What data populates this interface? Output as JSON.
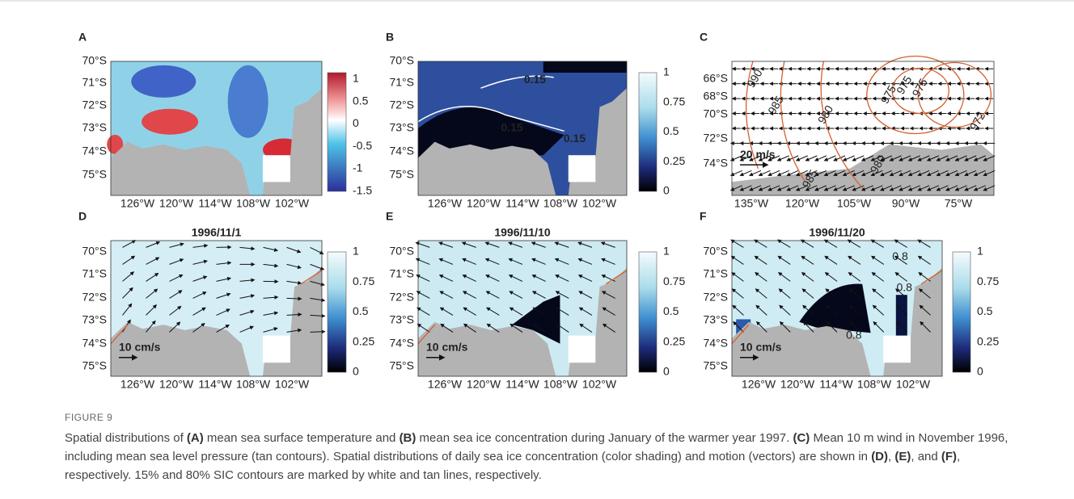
{
  "figure": {
    "label": "FIGURE 9",
    "caption": [
      {
        "text": "Spatial distributions of "
      },
      {
        "text": "(A)",
        "bold": true
      },
      {
        "text": " mean sea surface temperature and "
      },
      {
        "text": "(B)",
        "bold": true
      },
      {
        "text": " mean sea ice concentration during January of the warmer year 1997. "
      },
      {
        "text": "(C)",
        "bold": true
      },
      {
        "text": " Mean 10 m wind in November 1996, including mean sea level pressure (tan contours). Spatial distributions of daily sea ice concentration (color shading) and motion (vectors) are shown in "
      },
      {
        "text": "(D)",
        "bold": true
      },
      {
        "text": ", "
      },
      {
        "text": "(E)",
        "bold": true
      },
      {
        "text": ", and "
      },
      {
        "text": "(F)",
        "bold": true
      },
      {
        "text": ", respectively. 15% and 80% SIC contours are marked by white and tan lines, respectively."
      }
    ]
  },
  "panels": [
    {
      "letter": "A",
      "yticks": [
        "70°S",
        "71°S",
        "72°S",
        "73°S",
        "74°S",
        "75°S"
      ],
      "xticks": [
        "126°W",
        "120°W",
        "114°W",
        "108°W",
        "102°W"
      ],
      "colorbar": [
        "1",
        "0.5",
        "0",
        "-0.5",
        "-1",
        "-1.5"
      ]
    },
    {
      "letter": "B",
      "yticks": [
        "70°S",
        "71°S",
        "72°S",
        "73°S",
        "74°S",
        "75°S"
      ],
      "xticks": [
        "126°W",
        "120°W",
        "114°W",
        "108°W",
        "102°W"
      ],
      "colorbar": [
        "1",
        "0.75",
        "0.5",
        "0.25",
        "0"
      ],
      "contour_labels": [
        "0.15",
        "0.15",
        "0.15"
      ]
    },
    {
      "letter": "C",
      "yticks": [
        "66°S",
        "68°S",
        "70°S",
        "72°S",
        "74°S"
      ],
      "xticks": [
        "135°W",
        "120°W",
        "105°W",
        "90°W",
        "75°W"
      ],
      "contour_labels": [
        "990",
        "985",
        "980",
        "975",
        "975",
        "975",
        "972",
        "980",
        "985"
      ],
      "scale_label": "20 m/s"
    },
    {
      "letter": "D",
      "title": "1996/11/1",
      "yticks": [
        "70°S",
        "71°S",
        "72°S",
        "73°S",
        "74°S",
        "75°S"
      ],
      "xticks": [
        "126°W",
        "120°W",
        "114°W",
        "108°W",
        "102°W"
      ],
      "colorbar": [
        "1",
        "0.75",
        "0.5",
        "0.25",
        "0"
      ],
      "scale_label": "10 cm/s"
    },
    {
      "letter": "E",
      "title": "1996/11/10",
      "yticks": [
        "70°S",
        "71°S",
        "72°S",
        "73°S",
        "74°S",
        "75°S"
      ],
      "xticks": [
        "126°W",
        "120°W",
        "114°W",
        "108°W",
        "102°W"
      ],
      "colorbar": [
        "1",
        "0.75",
        "0.5",
        "0.25",
        "0"
      ],
      "scale_label": "10 cm/s"
    },
    {
      "letter": "F",
      "title": "1996/11/20",
      "yticks": [
        "70°S",
        "71°S",
        "72°S",
        "73°S",
        "74°S",
        "75°S"
      ],
      "xticks": [
        "126°W",
        "120°W",
        "114°W",
        "108°W",
        "102°W"
      ],
      "colorbar": [
        "1",
        "0.75",
        "0.5",
        "0.25",
        "0"
      ],
      "contour_labels": [
        "0.8",
        "0.8",
        "0.8"
      ],
      "scale_label": "10 cm/s"
    }
  ]
}
